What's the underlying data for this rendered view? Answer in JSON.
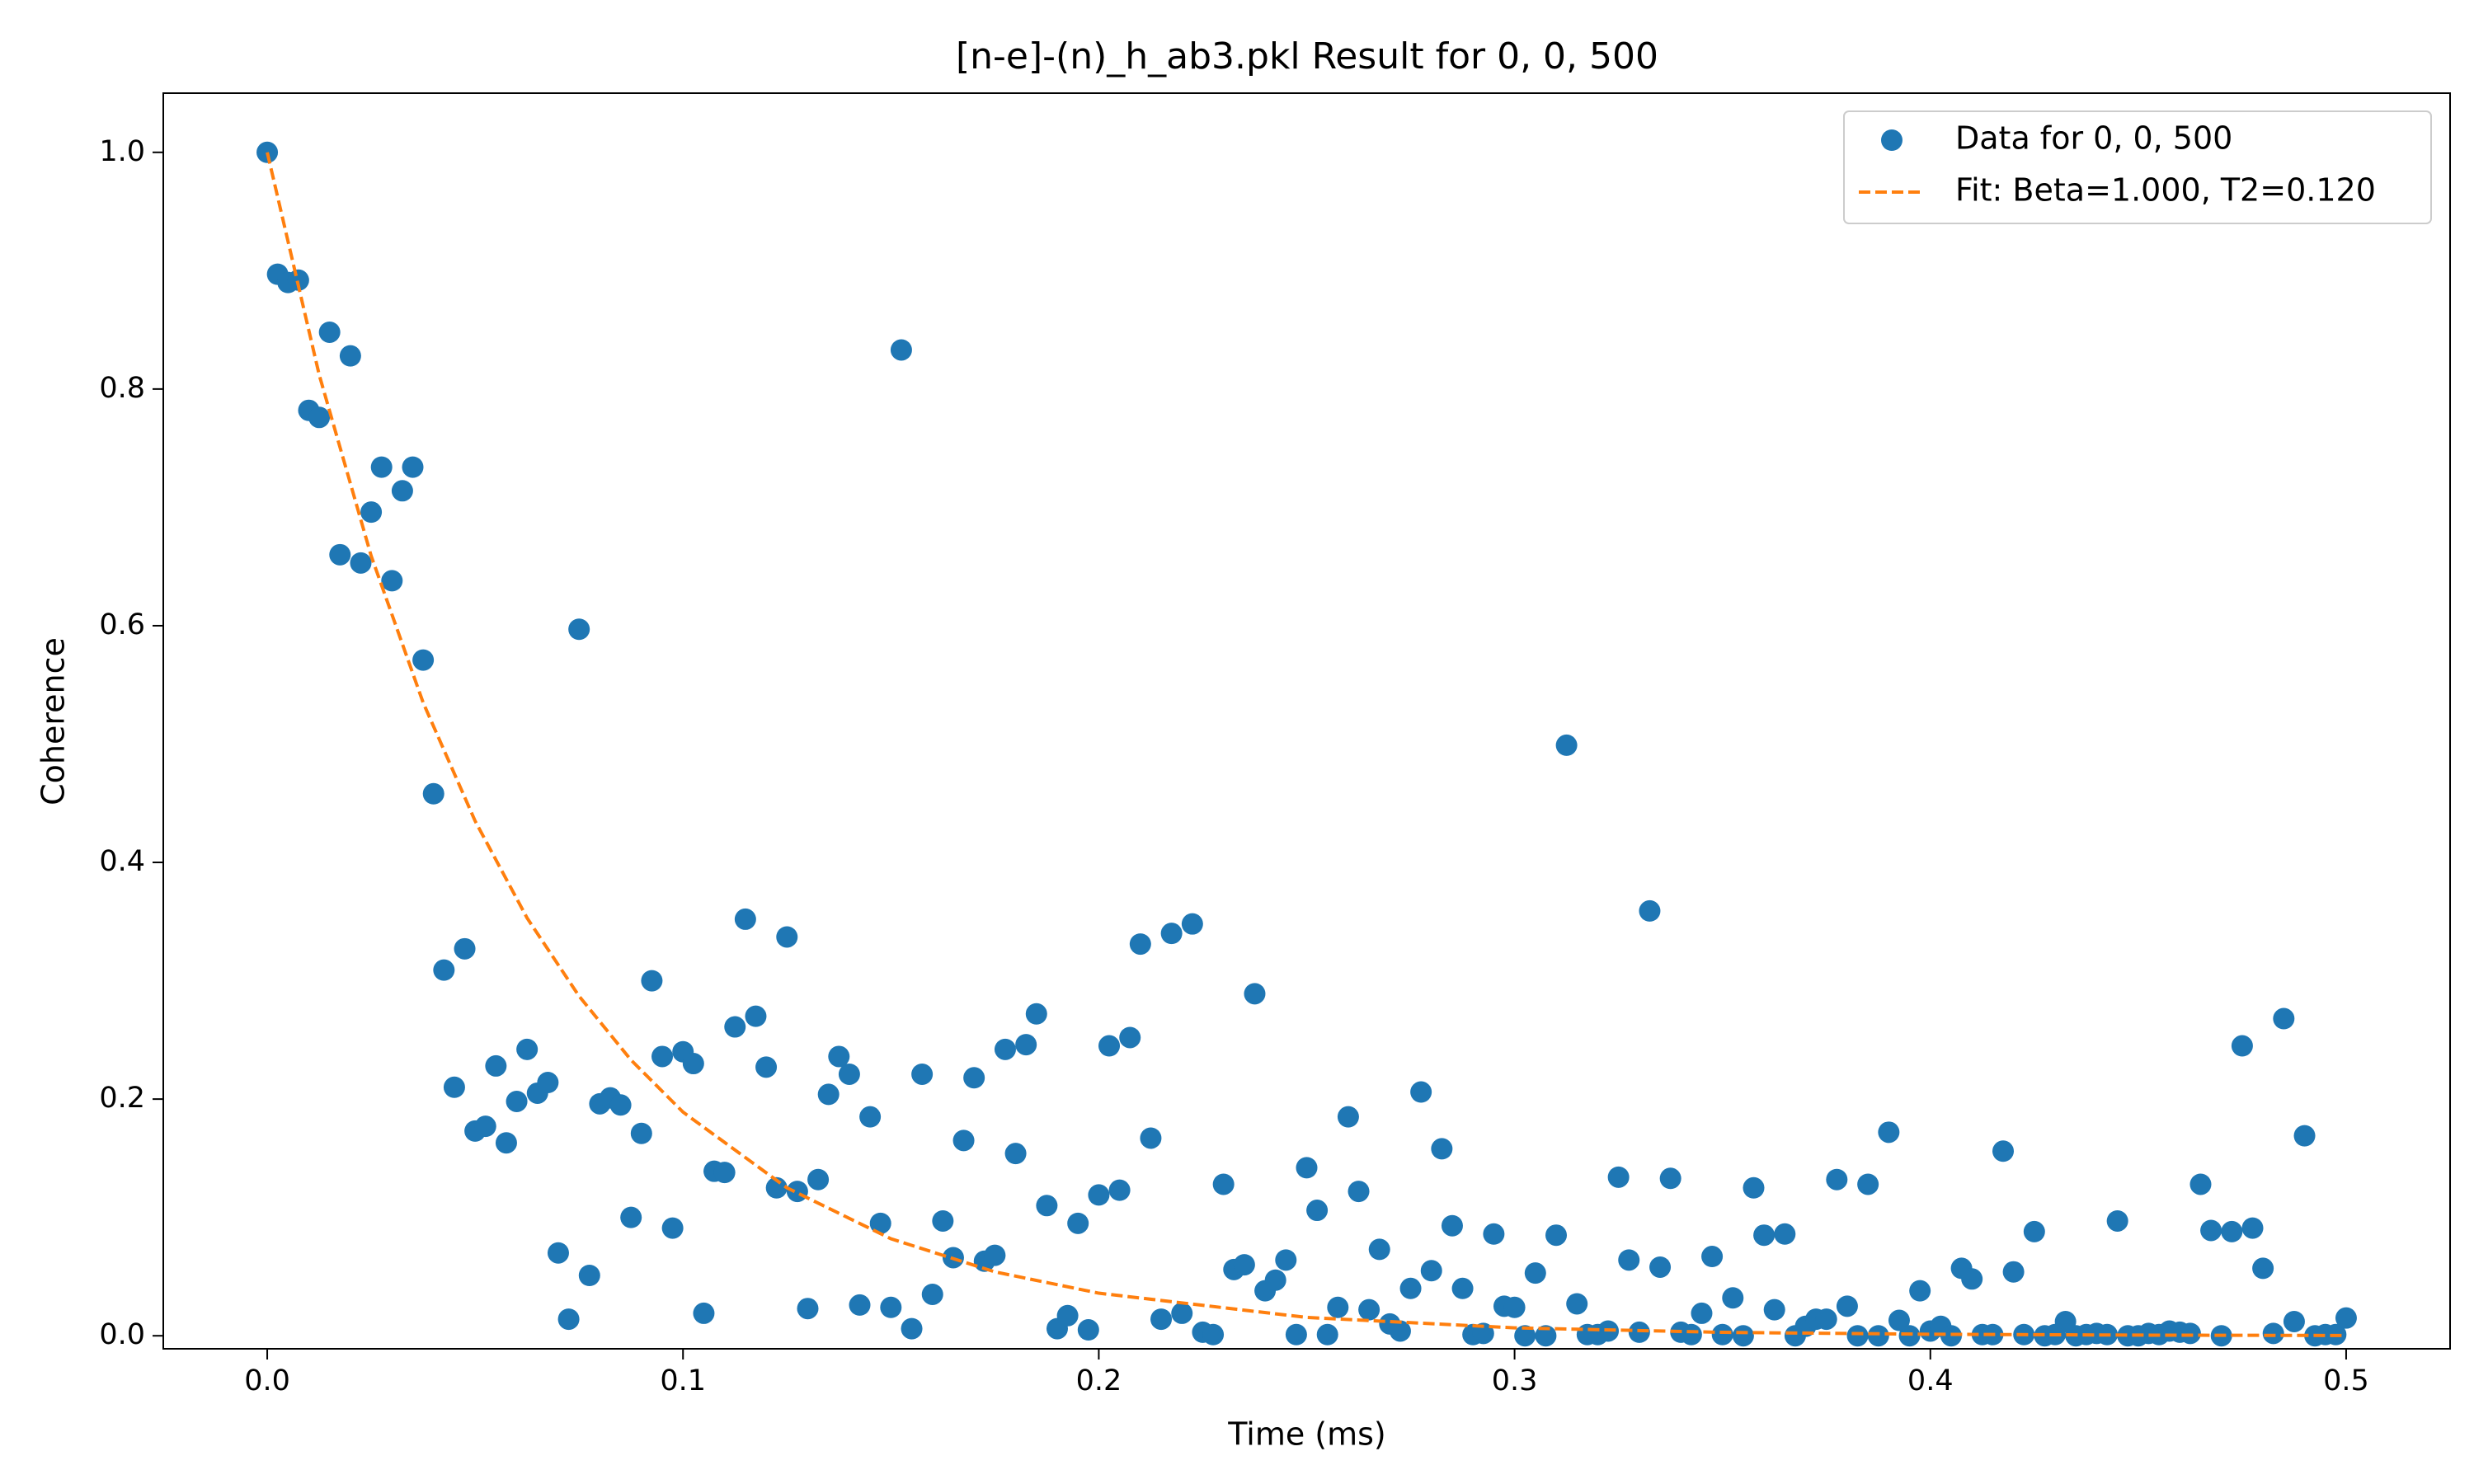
{
  "chart_data": {
    "type": "scatter",
    "title": "[n-e]-(n)_h_ab3.pkl Result for 0, 0, 500",
    "xlabel": "Time (ms)",
    "ylabel": "Coherence",
    "xlim": [
      -0.025,
      0.525
    ],
    "ylim": [
      -0.011,
      1.05
    ],
    "xticks": [
      {
        "value": 0,
        "label": "0.0"
      },
      0.1,
      0.2,
      0.3,
      0.4,
      0.5
    ],
    "yticks": [
      {
        "value": 0,
        "label": "0.0"
      },
      0.2,
      0.4,
      0.6,
      0.8,
      {
        "value": 1,
        "label": "1.0"
      }
    ],
    "legend": "upper right",
    "series": [
      {
        "name": "Data for 0, 0, 500",
        "type": "scatter",
        "color": "#1f77b4",
        "x": [
          0,
          0.0025,
          0.005,
          0.0075,
          0.01,
          0.0125,
          0.015,
          0.0175,
          0.02,
          0.0225,
          0.025,
          0.0275,
          0.03,
          0.0325,
          0.035,
          0.0375,
          0.04,
          0.0425,
          0.045,
          0.0475,
          0.05,
          0.0525,
          0.055,
          0.0575,
          0.06,
          0.0625,
          0.065,
          0.0675,
          0.07,
          0.0725,
          0.075,
          0.0775,
          0.08,
          0.0825,
          0.085,
          0.0875,
          0.09,
          0.0925,
          0.095,
          0.0975,
          0.1,
          0.1025,
          0.105,
          0.1075,
          0.11,
          0.1125,
          0.115,
          0.1175,
          0.12,
          0.1225,
          0.125,
          0.1275,
          0.13,
          0.1325,
          0.135,
          0.1375,
          0.14,
          0.1425,
          0.145,
          0.1475,
          0.15,
          0.1525,
          0.155,
          0.1575,
          0.16,
          0.1625,
          0.165,
          0.1675,
          0.17,
          0.1725,
          0.175,
          0.1775,
          0.18,
          0.1825,
          0.185,
          0.1875,
          0.19,
          0.1925,
          0.195,
          0.1975,
          0.2,
          0.2025,
          0.205,
          0.2075,
          0.21,
          0.2125,
          0.215,
          0.2175,
          0.22,
          0.2225,
          0.225,
          0.2275,
          0.23,
          0.2325,
          0.235,
          0.2375,
          0.24,
          0.2425,
          0.245,
          0.2475,
          0.25,
          0.2525,
          0.255,
          0.2575,
          0.26,
          0.2625,
          0.265,
          0.2675,
          0.27,
          0.2725,
          0.275,
          0.2775,
          0.28,
          0.2825,
          0.285,
          0.2875,
          0.29,
          0.2925,
          0.295,
          0.2975,
          0.3,
          0.3025,
          0.305,
          0.3075,
          0.31,
          0.3125,
          0.315,
          0.3175,
          0.32,
          0.3225,
          0.325,
          0.3275,
          0.33,
          0.3325,
          0.335,
          0.3375,
          0.34,
          0.3425,
          0.345,
          0.3475,
          0.35,
          0.3525,
          0.355,
          0.3575,
          0.36,
          0.3625,
          0.365,
          0.3675,
          0.37,
          0.3725,
          0.375,
          0.3775,
          0.38,
          0.3825,
          0.385,
          0.3875,
          0.39,
          0.3925,
          0.395,
          0.3975,
          0.4,
          0.4025,
          0.405,
          0.4075,
          0.41,
          0.4125,
          0.415,
          0.4175,
          0.42,
          0.4225,
          0.425,
          0.4275,
          0.43,
          0.4325,
          0.435,
          0.4375,
          0.44,
          0.4425,
          0.445,
          0.4475,
          0.45,
          0.4525,
          0.455,
          0.4575,
          0.46,
          0.4625,
          0.465,
          0.4675,
          0.47,
          0.4725,
          0.475,
          0.4775,
          0.48,
          0.4825,
          0.485,
          0.4875,
          0.49,
          0.4925,
          0.495,
          0.4975,
          0.5
        ],
        "values": [
          1.0,
          0.897,
          0.89,
          0.892,
          0.782,
          0.776,
          0.848,
          0.66,
          0.828,
          0.653,
          0.696,
          0.734,
          0.638,
          0.714,
          0.734,
          0.571,
          0.458,
          0.309,
          0.21,
          0.327,
          0.173,
          0.177,
          0.228,
          0.163,
          0.198,
          0.242,
          0.205,
          0.214,
          0.07,
          0.014,
          0.597,
          0.051,
          0.196,
          0.201,
          0.195,
          0.1,
          0.171,
          0.3,
          0.236,
          0.091,
          0.24,
          0.23,
          0.019,
          0.139,
          0.138,
          0.261,
          0.352,
          0.27,
          0.227,
          0.125,
          0.337,
          0.122,
          0.023,
          0.132,
          0.204,
          0.236,
          0.221,
          0.026,
          0.185,
          0.095,
          0.024,
          0.833,
          0.006,
          0.221,
          0.035,
          0.097,
          0.066,
          0.165,
          0.218,
          0.063,
          0.068,
          0.242,
          0.154,
          0.246,
          0.272,
          0.11,
          0.006,
          0.017,
          0.095,
          0.005,
          0.119,
          0.245,
          0.123,
          0.252,
          0.331,
          0.167,
          0.014,
          0.34,
          0.019,
          0.348,
          0.003,
          0.001,
          0.128,
          0.056,
          0.06,
          0.289,
          0.038,
          0.047,
          0.064,
          0.001,
          0.142,
          0.106,
          0.001,
          0.024,
          0.185,
          0.122,
          0.022,
          0.073,
          0.01,
          0.004,
          0.04,
          0.206,
          0.055,
          0.158,
          0.093,
          0.04,
          0.001,
          0.002,
          0.086,
          0.025,
          0.024,
          0.0,
          0.053,
          0.0,
          0.085,
          0.499,
          0.027,
          0.001,
          0.001,
          0.004,
          0.134,
          0.064,
          0.003,
          0.359,
          0.058,
          0.133,
          0.003,
          0.001,
          0.019,
          0.067,
          0.001,
          0.032,
          0.0,
          0.125,
          0.085,
          0.022,
          0.086,
          0.0,
          0.008,
          0.014,
          0.014,
          0.132,
          0.025,
          0.0,
          0.128,
          0.0,
          0.172,
          0.013,
          0.0,
          0.038,
          0.004,
          0.008,
          0.0,
          0.057,
          0.048,
          0.001,
          0.001,
          0.156,
          0.054,
          0.001,
          0.088,
          0.0,
          0.001,
          0.012,
          0.0,
          0.001,
          0.002,
          0.001,
          0.097,
          0.0,
          0.0,
          0.002,
          0.001,
          0.004,
          0.003,
          0.002,
          0.128,
          0.089,
          0.0,
          0.088,
          0.245,
          0.091,
          0.057,
          0.002,
          0.268,
          0.012,
          0.169,
          0.0,
          0.001,
          0.001,
          0.015
        ]
      },
      {
        "name": "Fit: Beta=1.000, T2=0.120",
        "type": "line",
        "style": "dashed",
        "color": "#ff7f0e",
        "x": [
          0,
          0.0125,
          0.025,
          0.0375,
          0.05,
          0.0625,
          0.075,
          0.0875,
          0.1,
          0.125,
          0.15,
          0.175,
          0.2,
          0.25,
          0.3,
          0.35,
          0.4,
          0.45,
          0.5
        ],
        "values": [
          1,
          0.812,
          0.659,
          0.535,
          0.435,
          0.353,
          0.287,
          0.233,
          0.189,
          0.125,
          0.082,
          0.054,
          0.036,
          0.0155,
          0.0067,
          0.0029,
          0.0013,
          0.00055,
          0.00024
        ]
      }
    ]
  }
}
